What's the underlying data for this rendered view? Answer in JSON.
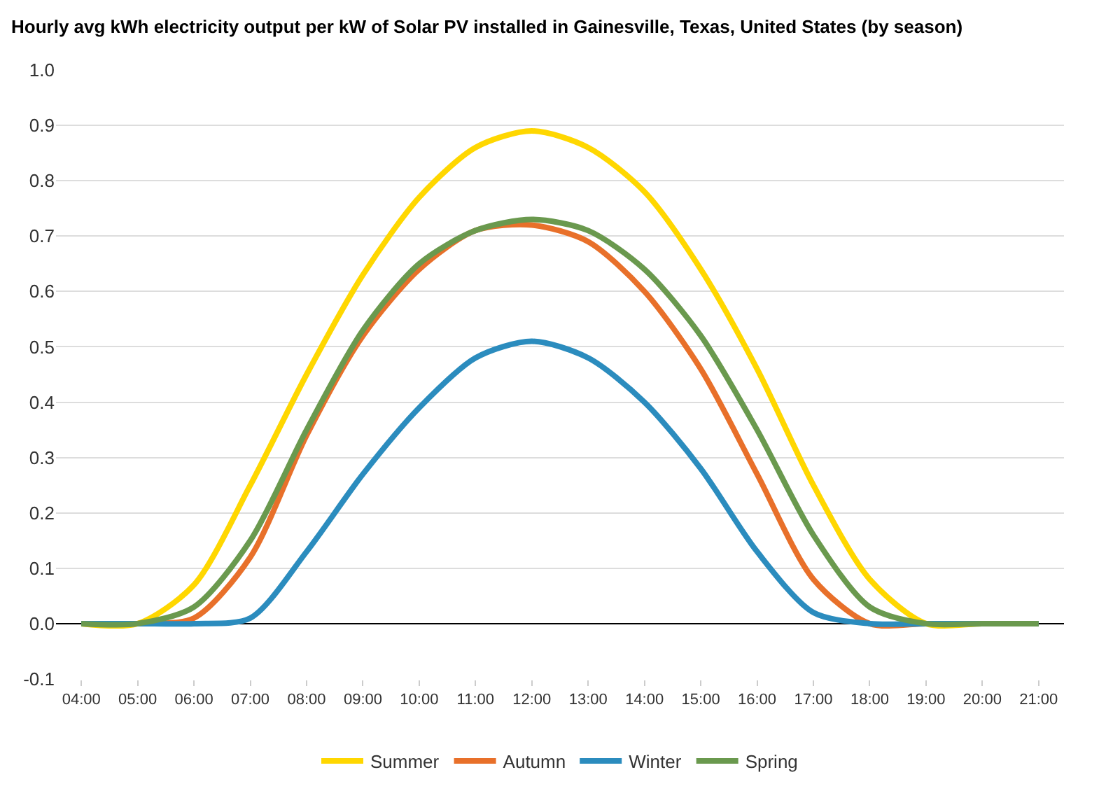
{
  "chart_data": {
    "type": "line",
    "title": "Hourly avg kWh electricity output per kW of Solar PV installed in Gainesville, Texas, United States (by season)",
    "x": [
      4,
      5,
      6,
      7,
      8,
      9,
      10,
      11,
      12,
      13,
      14,
      15,
      16,
      17,
      18,
      19,
      20,
      21
    ],
    "series": [
      {
        "name": "Summer",
        "color": "#ffd700",
        "values": [
          0,
          0,
          0.07,
          0.25,
          0.45,
          0.63,
          0.77,
          0.86,
          0.89,
          0.86,
          0.78,
          0.64,
          0.46,
          0.25,
          0.08,
          0,
          0,
          0
        ]
      },
      {
        "name": "Autumn",
        "color": "#e8702a",
        "values": [
          0,
          0,
          0.01,
          0.12,
          0.34,
          0.52,
          0.64,
          0.71,
          0.72,
          0.69,
          0.6,
          0.46,
          0.27,
          0.08,
          0,
          0,
          0,
          0
        ]
      },
      {
        "name": "Winter",
        "color": "#2b8cbe",
        "values": [
          0,
          0,
          0,
          0.01,
          0.13,
          0.27,
          0.39,
          0.48,
          0.51,
          0.48,
          0.4,
          0.28,
          0.13,
          0.02,
          0,
          0,
          0,
          0
        ]
      },
      {
        "name": "Spring",
        "color": "#6a994e",
        "values": [
          0,
          0,
          0.03,
          0.15,
          0.35,
          0.53,
          0.65,
          0.71,
          0.73,
          0.71,
          0.64,
          0.52,
          0.35,
          0.16,
          0.03,
          0,
          0,
          0
        ]
      }
    ],
    "xlim": [
      3.55,
      21.45
    ],
    "xticks": [
      {
        "value": 4,
        "label": "04:00"
      },
      {
        "value": 5,
        "label": "05:00"
      },
      {
        "value": 6,
        "label": "06:00"
      },
      {
        "value": 7,
        "label": "07:00"
      },
      {
        "value": 8,
        "label": "08:00"
      },
      {
        "value": 9,
        "label": "09:00"
      },
      {
        "value": 10,
        "label": "10:00"
      },
      {
        "value": 11,
        "label": "11:00"
      },
      {
        "value": 12,
        "label": "12:00"
      },
      {
        "value": 13,
        "label": "13:00"
      },
      {
        "value": 14,
        "label": "14:00"
      },
      {
        "value": 15,
        "label": "15:00"
      },
      {
        "value": 16,
        "label": "16:00"
      },
      {
        "value": 17,
        "label": "17:00"
      },
      {
        "value": 18,
        "label": "18:00"
      },
      {
        "value": 19,
        "label": "19:00"
      },
      {
        "value": 20,
        "label": "20:00"
      },
      {
        "value": 21,
        "label": "21:00"
      }
    ],
    "ylim": [
      -0.1,
      1.0
    ],
    "yticks": [
      {
        "value": -0.1,
        "label": "-0.1"
      },
      {
        "value": 0,
        "label": "0.0"
      },
      {
        "value": 0.1,
        "label": "0.1"
      },
      {
        "value": 0.2,
        "label": "0.2"
      },
      {
        "value": 0.3,
        "label": "0.3"
      },
      {
        "value": 0.4,
        "label": "0.4"
      },
      {
        "value": 0.5,
        "label": "0.5"
      },
      {
        "value": 0.6,
        "label": "0.6"
      },
      {
        "value": 0.7,
        "label": "0.7"
      },
      {
        "value": 0.8,
        "label": "0.8"
      },
      {
        "value": 0.9,
        "label": "0.9"
      },
      {
        "value": 1.0,
        "label": "1.0"
      }
    ],
    "grid": "y",
    "legend": "bottom",
    "marker": "none",
    "line_style": "solid"
  }
}
